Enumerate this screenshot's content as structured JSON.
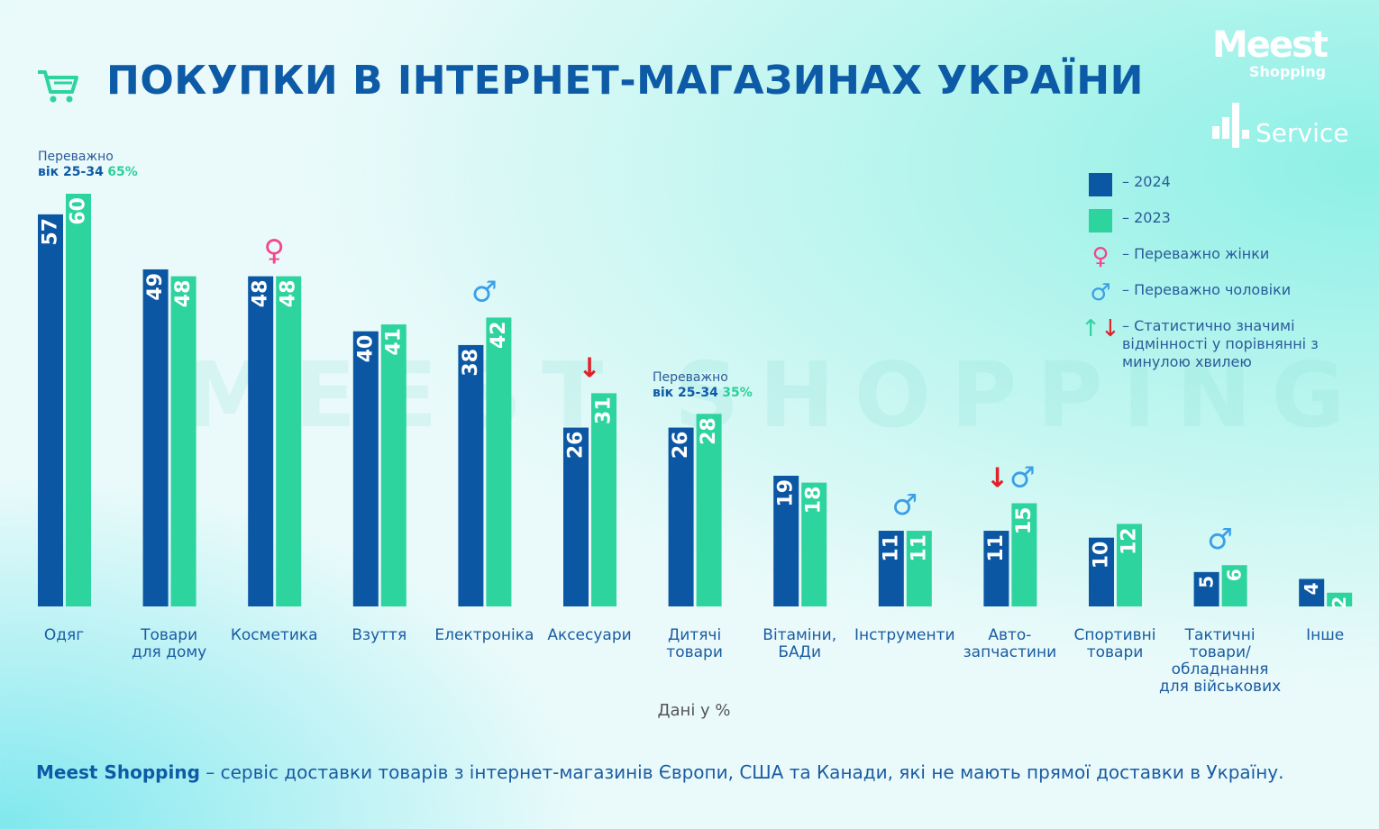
{
  "title": "ПОКУПКИ В ІНТЕРНЕТ-МАГАЗИНАХ УКРАЇНИ",
  "logo": {
    "brand": "Meest",
    "sub": "Shopping",
    "partner": "Service"
  },
  "watermark": "MEEST SHOPPING",
  "legend": {
    "y2024": "– 2024",
    "y2023": "– 2023",
    "female": "– Переважно жінки",
    "male": "– Переважно чоловіки",
    "significant": "– Статистично значимі відмінності у порівнянні з минулою хвилею"
  },
  "colors": {
    "2024": "#0b57a4",
    "2023": "#2dd49e",
    "female": "#f2478a",
    "male": "#3b9fe8",
    "down": "#e3202a",
    "up": "#2dd49e"
  },
  "annotations": [
    {
      "line1": "Переважно",
      "line2": "вік 25-34",
      "pct": "65%"
    },
    {
      "line1": "Переважно",
      "line2": "вік 25-34",
      "pct": "35%"
    }
  ],
  "unit_note": "Дані у %",
  "footer": {
    "brand": "Meest Shopping",
    "text": " – сервіс доставки товарів з інтернет-магазинів Європи, США та Канади, які не мають прямої доставки в Україну."
  },
  "chart_data": {
    "type": "bar",
    "categories": [
      [
        "Одяг"
      ],
      [
        "Товари",
        "для дому"
      ],
      [
        "Косметика"
      ],
      [
        "Взуття"
      ],
      [
        "Електроніка"
      ],
      [
        "Аксесуари"
      ],
      [
        "Дитячі",
        "товари"
      ],
      [
        "Вітаміни,",
        "БАДи"
      ],
      [
        "Інструменти"
      ],
      [
        "Авто-",
        "запчастини"
      ],
      [
        "Спортивні",
        "товари"
      ],
      [
        "Тактичні",
        "товари/",
        "обладнання",
        "для військових"
      ],
      [
        "Інше"
      ]
    ],
    "series": [
      {
        "name": "2024",
        "values": [
          57,
          49,
          48,
          40,
          38,
          26,
          26,
          19,
          11,
          11,
          10,
          5,
          4
        ]
      },
      {
        "name": "2023",
        "values": [
          60,
          48,
          48,
          41,
          42,
          31,
          28,
          18,
          11,
          15,
          12,
          6,
          2
        ]
      }
    ],
    "markers": [
      [],
      [],
      [
        "female"
      ],
      [],
      [
        "male"
      ],
      [
        "down"
      ],
      [],
      [],
      [
        "male"
      ],
      [
        "down",
        "male"
      ],
      [],
      [
        "male"
      ],
      []
    ],
    "ylim": [
      0,
      60
    ],
    "grid": false
  }
}
